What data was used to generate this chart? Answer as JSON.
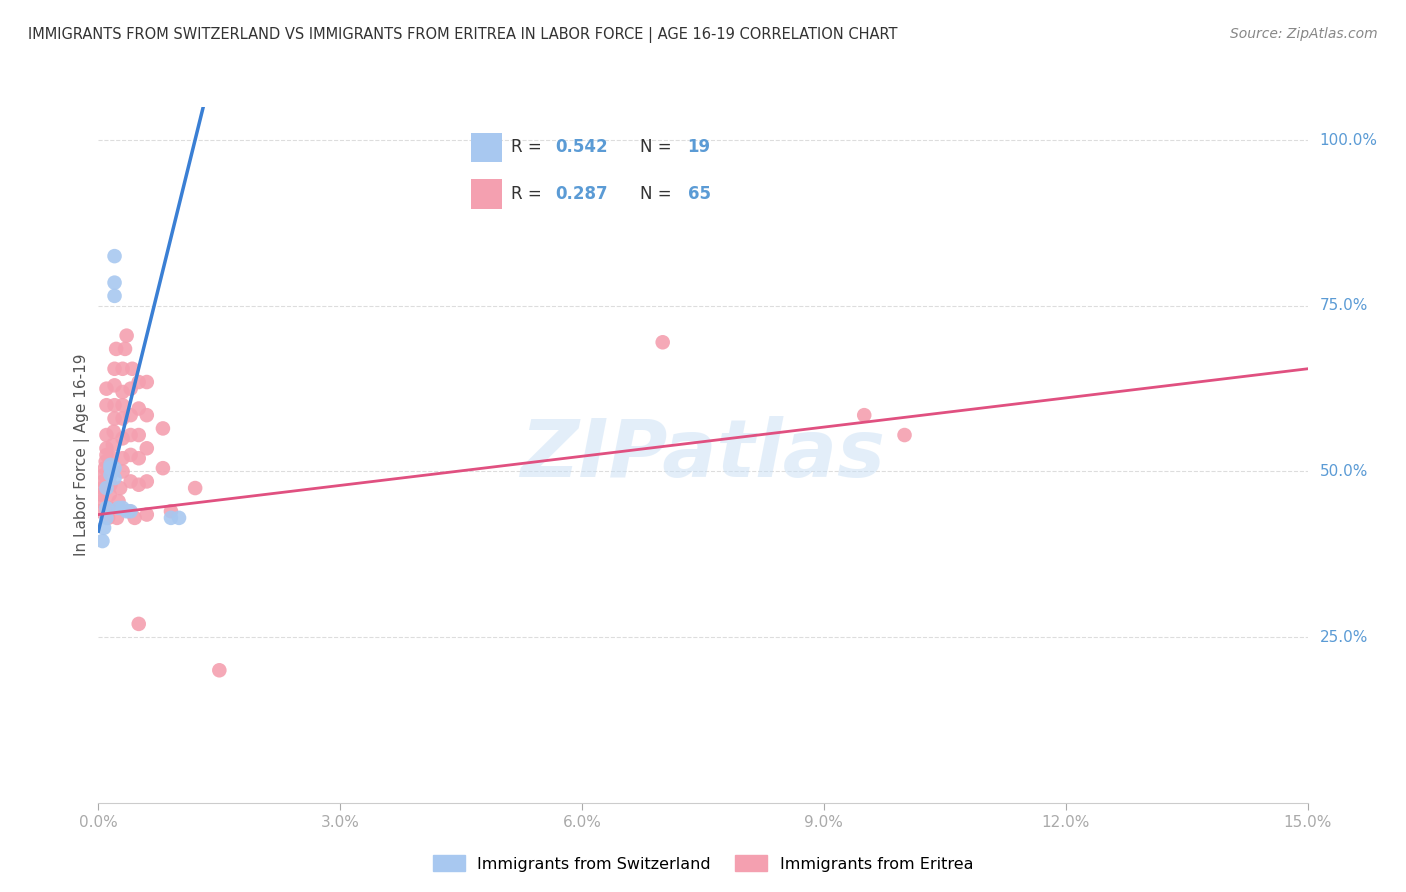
{
  "title": "IMMIGRANTS FROM SWITZERLAND VS IMMIGRANTS FROM ERITREA IN LABOR FORCE | AGE 16-19 CORRELATION CHART",
  "source": "Source: ZipAtlas.com",
  "ylabel": "In Labor Force | Age 16-19",
  "ylabel_right_ticks": [
    "100.0%",
    "75.0%",
    "50.0%",
    "25.0%"
  ],
  "ylabel_right_vals": [
    1.0,
    0.75,
    0.5,
    0.25
  ],
  "x_ticks": [
    0.0,
    0.03,
    0.06,
    0.09,
    0.12,
    0.15
  ],
  "x_tick_labels": [
    "0.0%",
    "3.0%",
    "6.0%",
    "9.0%",
    "12.0%",
    "15.0%"
  ],
  "x_min": 0.0,
  "x_max": 0.15,
  "y_min": 0.0,
  "y_max": 1.05,
  "watermark": "ZIPatlas",
  "legend_swiss_R": "0.542",
  "legend_swiss_N": "19",
  "legend_eritrea_R": "0.287",
  "legend_eritrea_N": "65",
  "swiss_color": "#a8c8f0",
  "swiss_line_color": "#3a7fd4",
  "eritrea_color": "#f4a0b0",
  "eritrea_line_color": "#e05080",
  "swiss_scatter": [
    [
      0.0005,
      0.395
    ],
    [
      0.0007,
      0.415
    ],
    [
      0.001,
      0.475
    ],
    [
      0.001,
      0.445
    ],
    [
      0.001,
      0.43
    ],
    [
      0.0015,
      0.505
    ],
    [
      0.0015,
      0.495
    ],
    [
      0.0015,
      0.51
    ],
    [
      0.002,
      0.505
    ],
    [
      0.002,
      0.49
    ],
    [
      0.002,
      0.825
    ],
    [
      0.002,
      0.785
    ],
    [
      0.002,
      0.765
    ],
    [
      0.0025,
      0.445
    ],
    [
      0.003,
      0.445
    ],
    [
      0.0035,
      0.44
    ],
    [
      0.004,
      0.44
    ],
    [
      0.009,
      0.43
    ],
    [
      0.01,
      0.43
    ]
  ],
  "eritrea_scatter": [
    [
      0.0002,
      0.44
    ],
    [
      0.0003,
      0.455
    ],
    [
      0.0004,
      0.465
    ],
    [
      0.0005,
      0.475
    ],
    [
      0.0006,
      0.485
    ],
    [
      0.0007,
      0.495
    ],
    [
      0.0008,
      0.505
    ],
    [
      0.0009,
      0.515
    ],
    [
      0.001,
      0.525
    ],
    [
      0.001,
      0.535
    ],
    [
      0.001,
      0.555
    ],
    [
      0.001,
      0.6
    ],
    [
      0.001,
      0.625
    ],
    [
      0.0012,
      0.43
    ],
    [
      0.0013,
      0.445
    ],
    [
      0.0014,
      0.465
    ],
    [
      0.0015,
      0.48
    ],
    [
      0.0016,
      0.5
    ],
    [
      0.0017,
      0.52
    ],
    [
      0.0018,
      0.54
    ],
    [
      0.0019,
      0.56
    ],
    [
      0.002,
      0.58
    ],
    [
      0.002,
      0.6
    ],
    [
      0.002,
      0.63
    ],
    [
      0.002,
      0.655
    ],
    [
      0.0022,
      0.685
    ],
    [
      0.0023,
      0.43
    ],
    [
      0.0025,
      0.455
    ],
    [
      0.0027,
      0.475
    ],
    [
      0.003,
      0.5
    ],
    [
      0.003,
      0.52
    ],
    [
      0.003,
      0.55
    ],
    [
      0.003,
      0.58
    ],
    [
      0.003,
      0.6
    ],
    [
      0.003,
      0.62
    ],
    [
      0.003,
      0.655
    ],
    [
      0.0033,
      0.685
    ],
    [
      0.0035,
      0.705
    ],
    [
      0.0038,
      0.44
    ],
    [
      0.004,
      0.485
    ],
    [
      0.004,
      0.525
    ],
    [
      0.004,
      0.555
    ],
    [
      0.004,
      0.585
    ],
    [
      0.004,
      0.625
    ],
    [
      0.0042,
      0.655
    ],
    [
      0.0045,
      0.43
    ],
    [
      0.005,
      0.48
    ],
    [
      0.005,
      0.52
    ],
    [
      0.005,
      0.555
    ],
    [
      0.005,
      0.595
    ],
    [
      0.005,
      0.635
    ],
    [
      0.005,
      0.27
    ],
    [
      0.006,
      0.435
    ],
    [
      0.006,
      0.485
    ],
    [
      0.006,
      0.535
    ],
    [
      0.006,
      0.585
    ],
    [
      0.006,
      0.635
    ],
    [
      0.008,
      0.505
    ],
    [
      0.008,
      0.565
    ],
    [
      0.009,
      0.44
    ],
    [
      0.012,
      0.475
    ],
    [
      0.015,
      0.2
    ],
    [
      0.07,
      0.695
    ],
    [
      0.095,
      0.585
    ],
    [
      0.1,
      0.555
    ]
  ],
  "swiss_trendline_x": [
    0.0,
    0.013
  ],
  "swiss_trendline_y": [
    0.41,
    1.05
  ],
  "eritrea_trendline_x": [
    0.0,
    0.15
  ],
  "eritrea_trendline_y": [
    0.435,
    0.655
  ],
  "background_color": "#ffffff",
  "grid_color": "#dddddd",
  "title_color": "#333333",
  "right_axis_color": "#5b9bd5",
  "tick_color": "#aaaaaa"
}
